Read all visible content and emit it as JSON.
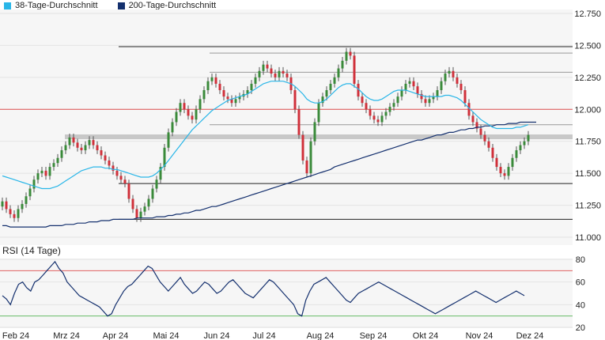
{
  "legend": {
    "ma38_label": "38-Tage-Durchschnitt",
    "ma200_label": "200-Tage-Durchschnitt",
    "ma38_color": "#29b6e8",
    "ma200_color": "#14306e"
  },
  "rsi_title": "RSI (14 Tage)",
  "colors": {
    "up": "#3a8a3a",
    "down": "#d0303a",
    "bg": "#f6f6f6",
    "support": "#222222",
    "resistance_red": "#e05050",
    "rsi_line": "#14306e",
    "rsi_upper": "#e06060",
    "rsi_lower": "#66bb66"
  },
  "chart_data": [
    {
      "type": "candlestick",
      "title": "",
      "ylim": [
        11.0,
        12.75
      ],
      "y_ticks": [
        "12.750",
        "12.500",
        "12.250",
        "12.000",
        "11.750",
        "11.500",
        "11.250",
        "11.000"
      ],
      "x_ticks": [
        "Feb 24",
        "Mrz 24",
        "Apr 24",
        "Mai 24",
        "Jun 24",
        "Jul 24",
        "Aug 24",
        "Sep 24",
        "Okt 24",
        "Nov 24",
        "Dez 24"
      ],
      "close": [
        11.28,
        11.22,
        11.18,
        11.15,
        11.22,
        11.26,
        11.32,
        11.38,
        11.45,
        11.5,
        11.52,
        11.48,
        11.55,
        11.58,
        11.62,
        11.68,
        11.72,
        11.78,
        11.74,
        11.7,
        11.68,
        11.72,
        11.76,
        11.72,
        11.68,
        11.64,
        11.6,
        11.56,
        11.52,
        11.48,
        11.45,
        11.42,
        11.3,
        11.22,
        11.15,
        11.2,
        11.24,
        11.3,
        11.38,
        11.45,
        11.55,
        11.7,
        11.82,
        11.9,
        11.98,
        12.05,
        12.0,
        11.95,
        11.92,
        12.0,
        12.08,
        12.15,
        12.22,
        12.25,
        12.2,
        12.15,
        12.1,
        12.08,
        12.05,
        12.08,
        12.1,
        12.12,
        12.15,
        12.2,
        12.25,
        12.3,
        12.35,
        12.32,
        12.28,
        12.25,
        12.3,
        12.28,
        12.25,
        12.15,
        12.0,
        11.8,
        11.6,
        11.5,
        11.75,
        11.9,
        12.05,
        12.1,
        12.15,
        12.2,
        12.25,
        12.32,
        12.38,
        12.45,
        12.42,
        12.2,
        12.1,
        12.05,
        12.0,
        11.95,
        11.92,
        11.9,
        11.95,
        11.98,
        12.02,
        12.05,
        12.1,
        12.15,
        12.2,
        12.22,
        12.18,
        12.12,
        12.08,
        12.05,
        12.08,
        12.1,
        12.15,
        12.22,
        12.28,
        12.3,
        12.25,
        12.2,
        12.15,
        12.05,
        11.95,
        11.9,
        11.85,
        11.8,
        11.75,
        11.7,
        11.62,
        11.55,
        11.5,
        11.48,
        11.55,
        11.62,
        11.68,
        11.72,
        11.75,
        11.8
      ],
      "ma38": [
        11.48,
        11.47,
        11.46,
        11.45,
        11.44,
        11.43,
        11.42,
        11.41,
        11.4,
        11.39,
        11.38,
        11.38,
        11.38,
        11.39,
        11.4,
        11.42,
        11.44,
        11.46,
        11.48,
        11.5,
        11.52,
        11.53,
        11.54,
        11.55,
        11.55,
        11.55,
        11.54,
        11.54,
        11.53,
        11.53,
        11.52,
        11.51,
        11.5,
        11.49,
        11.48,
        11.47,
        11.47,
        11.47,
        11.48,
        11.5,
        11.53,
        11.56,
        11.6,
        11.64,
        11.68,
        11.72,
        11.76,
        11.8,
        11.84,
        11.87,
        11.9,
        11.93,
        11.96,
        11.99,
        12.01,
        12.03,
        12.05,
        12.07,
        12.08,
        12.09,
        12.1,
        12.11,
        12.12,
        12.14,
        12.16,
        12.18,
        12.2,
        12.21,
        12.22,
        12.22,
        12.22,
        12.22,
        12.21,
        12.2,
        12.18,
        12.15,
        12.12,
        12.08,
        12.06,
        12.05,
        12.05,
        12.06,
        12.08,
        12.11,
        12.14,
        12.17,
        12.19,
        12.2,
        12.2,
        12.18,
        12.16,
        12.13,
        12.1,
        12.08,
        12.07,
        12.07,
        12.08,
        12.1,
        12.12,
        12.14,
        12.15,
        12.15,
        12.15,
        12.14,
        12.13,
        12.12,
        12.11,
        12.1,
        12.1,
        12.1,
        12.1,
        12.1,
        12.11,
        12.11,
        12.1,
        12.09,
        12.07,
        12.04,
        12.01,
        11.98,
        11.95,
        11.92,
        11.9,
        11.88,
        11.86,
        11.85,
        11.85,
        11.85,
        11.85,
        11.85,
        11.86,
        11.86,
        11.87,
        11.88
      ],
      "ma200": [
        11.09,
        11.09,
        11.08,
        11.08,
        11.08,
        11.08,
        11.08,
        11.08,
        11.08,
        11.08,
        11.08,
        11.08,
        11.09,
        11.09,
        11.09,
        11.09,
        11.1,
        11.1,
        11.1,
        11.11,
        11.11,
        11.11,
        11.12,
        11.12,
        11.12,
        11.13,
        11.13,
        11.13,
        11.14,
        11.14,
        11.14,
        11.14,
        11.14,
        11.14,
        11.15,
        11.15,
        11.15,
        11.15,
        11.15,
        11.16,
        11.16,
        11.16,
        11.17,
        11.17,
        11.18,
        11.18,
        11.19,
        11.19,
        11.2,
        11.21,
        11.21,
        11.22,
        11.23,
        11.24,
        11.24,
        11.25,
        11.26,
        11.27,
        11.28,
        11.29,
        11.3,
        11.31,
        11.32,
        11.33,
        11.34,
        11.35,
        11.36,
        11.37,
        11.38,
        11.39,
        11.4,
        11.41,
        11.42,
        11.43,
        11.44,
        11.45,
        11.46,
        11.47,
        11.48,
        11.49,
        11.5,
        11.51,
        11.52,
        11.53,
        11.55,
        11.56,
        11.57,
        11.58,
        11.59,
        11.6,
        11.61,
        11.62,
        11.63,
        11.64,
        11.65,
        11.66,
        11.67,
        11.68,
        11.69,
        11.7,
        11.71,
        11.72,
        11.73,
        11.74,
        11.75,
        11.76,
        11.76,
        11.77,
        11.78,
        11.79,
        11.8,
        11.8,
        11.81,
        11.82,
        11.82,
        11.83,
        11.84,
        11.84,
        11.85,
        11.85,
        11.86,
        11.86,
        11.87,
        11.87,
        11.87,
        11.88,
        11.88,
        11.88,
        11.89,
        11.89,
        11.89,
        11.9,
        11.9,
        11.9,
        11.9,
        11.9
      ],
      "levels": [
        {
          "y": 12.49,
          "style": "support"
        },
        {
          "y": 12.44,
          "style": "gray"
        },
        {
          "y": 12.29,
          "style": "gray"
        },
        {
          "y": 12.0,
          "style": "red"
        },
        {
          "y": 11.88,
          "style": "gray"
        },
        {
          "y": 11.785,
          "style": "band"
        },
        {
          "y": 11.42,
          "style": "support"
        },
        {
          "y": 11.14,
          "style": "support"
        }
      ]
    },
    {
      "type": "line",
      "title": "RSI (14 Tage)",
      "ylim": [
        20,
        80
      ],
      "y_ticks": [
        "80",
        "60",
        "40",
        "20"
      ],
      "bands": [
        70,
        30
      ],
      "values": [
        48,
        45,
        40,
        50,
        58,
        60,
        55,
        52,
        60,
        62,
        66,
        70,
        74,
        78,
        72,
        68,
        60,
        56,
        52,
        48,
        46,
        44,
        42,
        40,
        38,
        34,
        30,
        32,
        40,
        46,
        52,
        56,
        58,
        62,
        66,
        70,
        74,
        72,
        66,
        60,
        56,
        52,
        56,
        60,
        64,
        58,
        54,
        50,
        52,
        56,
        60,
        58,
        54,
        50,
        52,
        56,
        60,
        62,
        58,
        54,
        50,
        48,
        46,
        50,
        54,
        58,
        62,
        60,
        56,
        52,
        48,
        44,
        40,
        32,
        30,
        44,
        52,
        58,
        60,
        62,
        64,
        60,
        56,
        52,
        48,
        44,
        42,
        46,
        50,
        52,
        54,
        56,
        58,
        60,
        58,
        56,
        54,
        52,
        50,
        48,
        46,
        44,
        42,
        40,
        38,
        36,
        34,
        32,
        34,
        36,
        38,
        40,
        42,
        44,
        46,
        48,
        50,
        52,
        50,
        48,
        46,
        44,
        42,
        44,
        46,
        48,
        50,
        52,
        50,
        48
      ]
    }
  ]
}
